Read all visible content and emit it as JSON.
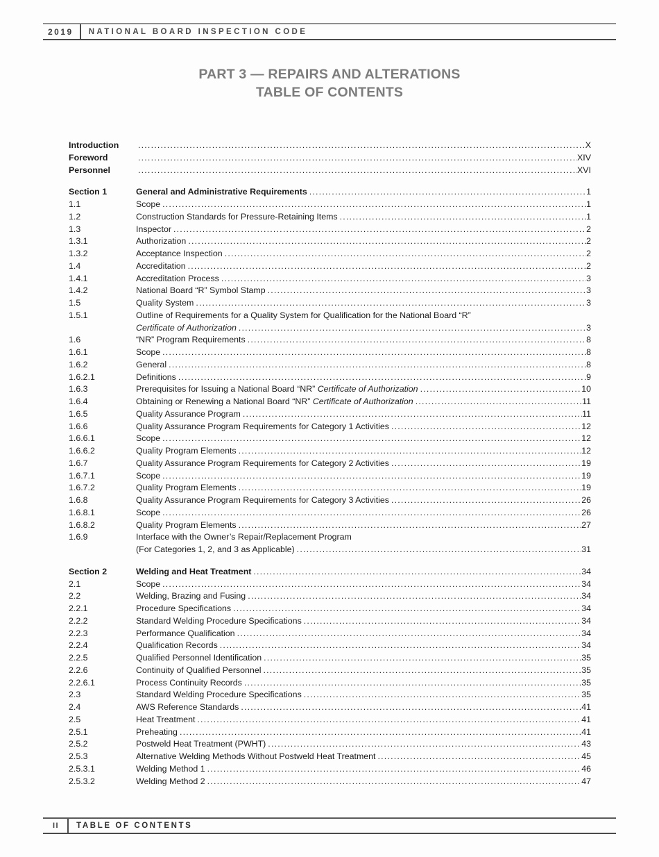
{
  "header": {
    "year": "2019",
    "title": "NATIONAL BOARD INSPECTION CODE"
  },
  "title": {
    "line1": "PART 3 — REPAIRS AND ALTERATIONS",
    "line2": "TABLE OF CONTENTS"
  },
  "footer": {
    "page": "II",
    "label": "TABLE OF CONTENTS"
  },
  "colors": {
    "title_gray": "#7c7c7c",
    "body_text": "#1d1d1d",
    "rule_dark": "#4a4a4a",
    "rule_light": "#8e8e8e"
  },
  "toc_blocks": [
    {
      "name": "front-matter",
      "rows": [
        {
          "num": "Introduction",
          "bold": true,
          "lines": [
            {
              "parts": [],
              "page": "X"
            }
          ]
        },
        {
          "num": "Foreword",
          "bold": true,
          "lines": [
            {
              "parts": [],
              "page": "XIV"
            }
          ]
        },
        {
          "num": "Personnel",
          "bold": true,
          "lines": [
            {
              "parts": [],
              "page": "XVI"
            }
          ]
        }
      ]
    },
    {
      "name": "section-1",
      "rows": [
        {
          "num": "Section 1",
          "bold": true,
          "lines": [
            {
              "parts": [
                {
                  "t": "General and Administrative Requirements"
                }
              ],
              "page": "1"
            }
          ]
        },
        {
          "num": "1.1",
          "lines": [
            {
              "parts": [
                {
                  "t": "Scope"
                }
              ],
              "page": "1"
            }
          ]
        },
        {
          "num": "1.2",
          "lines": [
            {
              "parts": [
                {
                  "t": "Construction Standards for Pressure-Retaining Items"
                }
              ],
              "page": "1"
            }
          ]
        },
        {
          "num": "1.3",
          "lines": [
            {
              "parts": [
                {
                  "t": "Inspector"
                }
              ],
              "page": "2"
            }
          ]
        },
        {
          "num": "1.3.1",
          "lines": [
            {
              "parts": [
                {
                  "t": "Authorization"
                }
              ],
              "page": "2"
            }
          ]
        },
        {
          "num": "1.3.2",
          "lines": [
            {
              "parts": [
                {
                  "t": "Acceptance Inspection"
                }
              ],
              "page": "2"
            }
          ]
        },
        {
          "num": "1.4",
          "lines": [
            {
              "parts": [
                {
                  "t": "Accreditation"
                }
              ],
              "page": "2"
            }
          ]
        },
        {
          "num": "1.4.1",
          "lines": [
            {
              "parts": [
                {
                  "t": "Accreditation Process"
                }
              ],
              "page": "3"
            }
          ]
        },
        {
          "num": "1.4.2",
          "lines": [
            {
              "parts": [
                {
                  "t": "National Board “R” Symbol Stamp"
                }
              ],
              "page": "3"
            }
          ]
        },
        {
          "num": "1.5",
          "lines": [
            {
              "parts": [
                {
                  "t": "Quality System"
                }
              ],
              "page": "3"
            }
          ]
        },
        {
          "num": "1.5.1",
          "lines": [
            {
              "parts": [
                {
                  "t": "Outline of Requirements for a Quality System for Qualification for the National Board “R”"
                }
              ],
              "page": null
            },
            {
              "parts": [
                {
                  "t": "Certificate of Authorization",
                  "i": true
                }
              ],
              "page": "3"
            }
          ]
        },
        {
          "num": "1.6",
          "lines": [
            {
              "parts": [
                {
                  "t": "“NR” Program Requirements"
                }
              ],
              "page": "8"
            }
          ]
        },
        {
          "num": "1.6.1",
          "lines": [
            {
              "parts": [
                {
                  "t": "Scope"
                }
              ],
              "page": "8"
            }
          ]
        },
        {
          "num": "1.6.2",
          "lines": [
            {
              "parts": [
                {
                  "t": "General"
                }
              ],
              "page": "8"
            }
          ]
        },
        {
          "num": "1.6.2.1",
          "lines": [
            {
              "parts": [
                {
                  "t": "Definitions"
                }
              ],
              "page": "9"
            }
          ]
        },
        {
          "num": "1.6.3",
          "lines": [
            {
              "parts": [
                {
                  "t": "Prerequisites for Issuing a National Board “NR” "
                },
                {
                  "t": "Certificate of Authorization",
                  "i": true
                }
              ],
              "page": "10"
            }
          ]
        },
        {
          "num": "1.6.4",
          "lines": [
            {
              "parts": [
                {
                  "t": "Obtaining or Renewing a National Board “NR” "
                },
                {
                  "t": "Certificate of Authorization",
                  "i": true
                }
              ],
              "page": "11"
            }
          ]
        },
        {
          "num": "1.6.5",
          "lines": [
            {
              "parts": [
                {
                  "t": "Quality Assurance Program"
                }
              ],
              "page": "11"
            }
          ]
        },
        {
          "num": "1.6.6",
          "lines": [
            {
              "parts": [
                {
                  "t": "Quality Assurance Program Requirements for Category 1 Activities"
                }
              ],
              "page": "12"
            }
          ]
        },
        {
          "num": "1.6.6.1",
          "lines": [
            {
              "parts": [
                {
                  "t": "Scope"
                }
              ],
              "page": "12"
            }
          ]
        },
        {
          "num": "1.6.6.2",
          "lines": [
            {
              "parts": [
                {
                  "t": "Quality Program Elements"
                }
              ],
              "page": "12"
            }
          ]
        },
        {
          "num": "1.6.7",
          "lines": [
            {
              "parts": [
                {
                  "t": "Quality Assurance Program Requirements for Category 2 Activities"
                }
              ],
              "page": "19"
            }
          ]
        },
        {
          "num": "1.6.7.1",
          "lines": [
            {
              "parts": [
                {
                  "t": "Scope"
                }
              ],
              "page": "19"
            }
          ]
        },
        {
          "num": "1.6.7.2",
          "lines": [
            {
              "parts": [
                {
                  "t": "Quality Program Elements"
                }
              ],
              "page": "19"
            }
          ]
        },
        {
          "num": "1.6.8",
          "lines": [
            {
              "parts": [
                {
                  "t": "Quality Assurance Program Requirements for Category 3 Activities"
                }
              ],
              "page": "26"
            }
          ]
        },
        {
          "num": "1.6.8.1",
          "lines": [
            {
              "parts": [
                {
                  "t": "Scope"
                }
              ],
              "page": "26"
            }
          ]
        },
        {
          "num": "1.6.8.2",
          "lines": [
            {
              "parts": [
                {
                  "t": "Quality Program Elements"
                }
              ],
              "page": "27"
            }
          ]
        },
        {
          "num": "1.6.9",
          "lines": [
            {
              "parts": [
                {
                  "t": "Interface with the Owner’s Repair/Replacement Program"
                }
              ],
              "page": null
            },
            {
              "parts": [
                {
                  "t": "(For Categories 1, 2, and 3 as Applicable)"
                }
              ],
              "page": "31"
            }
          ]
        }
      ]
    },
    {
      "name": "section-2",
      "rows": [
        {
          "num": "Section 2",
          "bold": true,
          "lines": [
            {
              "parts": [
                {
                  "t": "Welding and Heat Treatment"
                }
              ],
              "page": "34"
            }
          ]
        },
        {
          "num": "2.1",
          "lines": [
            {
              "parts": [
                {
                  "t": "Scope"
                }
              ],
              "page": "34"
            }
          ]
        },
        {
          "num": "2.2",
          "lines": [
            {
              "parts": [
                {
                  "t": "Welding, Brazing and Fusing"
                }
              ],
              "page": "34"
            }
          ]
        },
        {
          "num": "2.2.1",
          "lines": [
            {
              "parts": [
                {
                  "t": "Procedure Specifications"
                }
              ],
              "page": "34"
            }
          ]
        },
        {
          "num": "2.2.2",
          "lines": [
            {
              "parts": [
                {
                  "t": "Standard Welding Procedure Specifications"
                }
              ],
              "page": "34"
            }
          ]
        },
        {
          "num": "2.2.3",
          "lines": [
            {
              "parts": [
                {
                  "t": "Performance Qualification"
                }
              ],
              "page": "34"
            }
          ]
        },
        {
          "num": "2.2.4",
          "lines": [
            {
              "parts": [
                {
                  "t": "Qualification Records"
                }
              ],
              "page": "34"
            }
          ]
        },
        {
          "num": "2.2.5",
          "lines": [
            {
              "parts": [
                {
                  "t": "Qualified Personnel Identification"
                }
              ],
              "page": "35"
            }
          ]
        },
        {
          "num": "2.2.6",
          "lines": [
            {
              "parts": [
                {
                  "t": "Continuity of Qualified Personnel"
                }
              ],
              "page": "35"
            }
          ]
        },
        {
          "num": "2.2.6.1",
          "lines": [
            {
              "parts": [
                {
                  "t": "Process Continuity Records"
                }
              ],
              "page": "35"
            }
          ]
        },
        {
          "num": "2.3",
          "lines": [
            {
              "parts": [
                {
                  "t": "Standard Welding Procedure Specifications"
                }
              ],
              "page": "35"
            }
          ]
        },
        {
          "num": "2.4",
          "lines": [
            {
              "parts": [
                {
                  "t": "AWS Reference Standards"
                }
              ],
              "page": "41"
            }
          ]
        },
        {
          "num": "2.5",
          "lines": [
            {
              "parts": [
                {
                  "t": "Heat Treatment"
                }
              ],
              "page": "41"
            }
          ]
        },
        {
          "num": "2.5.1",
          "lines": [
            {
              "parts": [
                {
                  "t": "Preheating"
                }
              ],
              "page": "41"
            }
          ]
        },
        {
          "num": "2.5.2",
          "lines": [
            {
              "parts": [
                {
                  "t": "Postweld Heat Treatment (PWHT)"
                }
              ],
              "page": "43"
            }
          ]
        },
        {
          "num": "2.5.3",
          "lines": [
            {
              "parts": [
                {
                  "t": "Alternative Welding Methods Without Postweld Heat Treatment"
                }
              ],
              "page": "45"
            }
          ]
        },
        {
          "num": "2.5.3.1",
          "lines": [
            {
              "parts": [
                {
                  "t": "Welding Method 1"
                }
              ],
              "page": "46"
            }
          ]
        },
        {
          "num": "2.5.3.2",
          "lines": [
            {
              "parts": [
                {
                  "t": "Welding Method 2"
                }
              ],
              "page": "47"
            }
          ]
        }
      ]
    }
  ]
}
